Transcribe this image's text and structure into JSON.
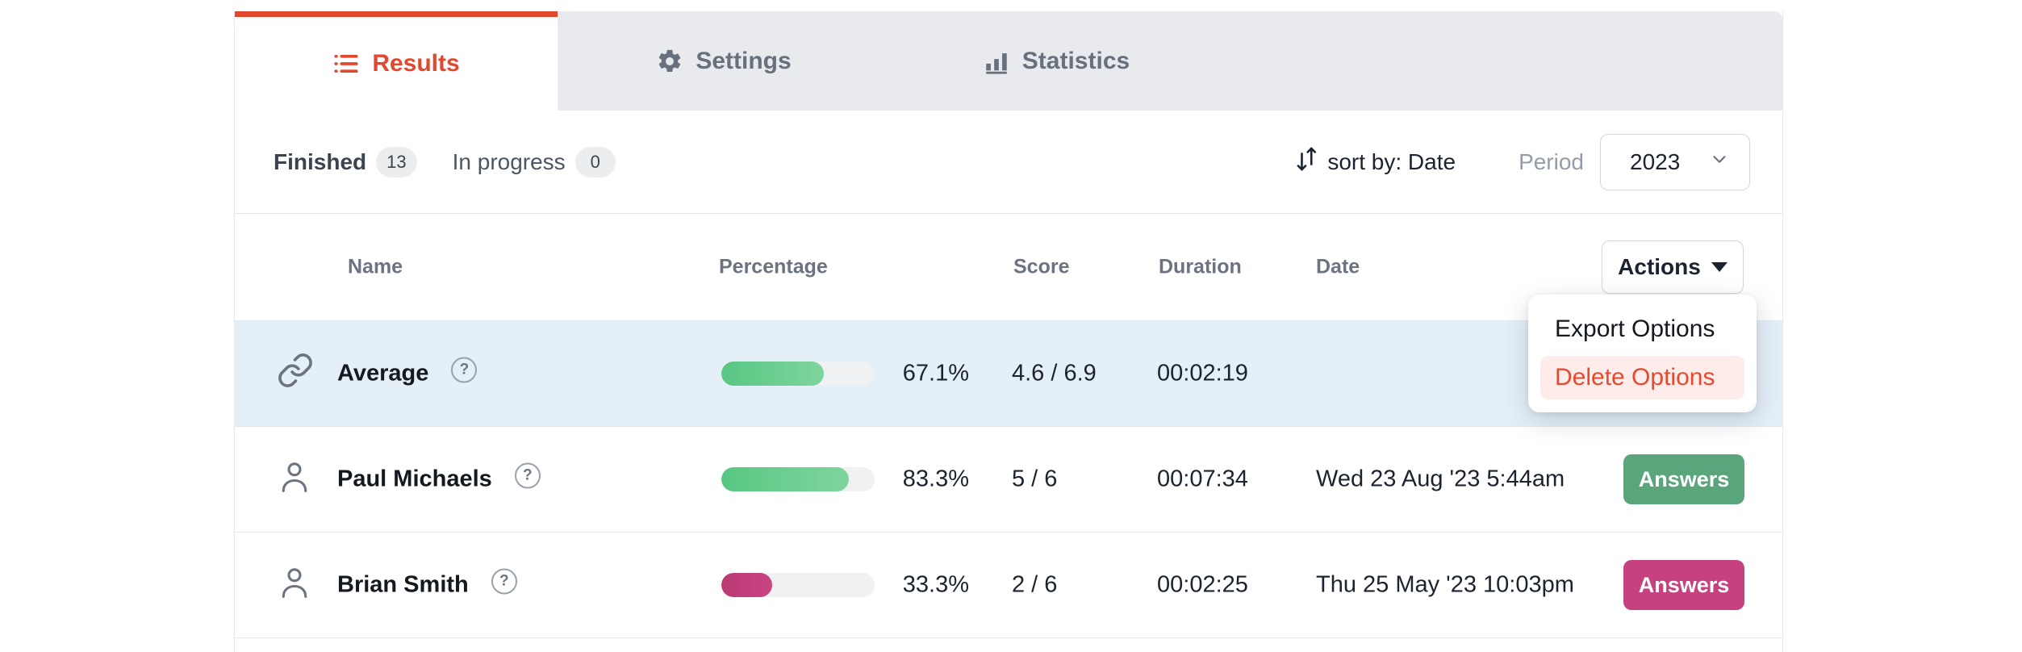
{
  "tabs": {
    "results": {
      "label": "Results",
      "icon": "list-icon"
    },
    "settings": {
      "label": "Settings",
      "icon": "gear-icon"
    },
    "statistics": {
      "label": "Statistics",
      "icon": "bar-chart-icon"
    }
  },
  "filters": {
    "finished": {
      "label": "Finished",
      "count": "13"
    },
    "in_progress": {
      "label": "In progress",
      "count": "0"
    }
  },
  "toolbar": {
    "sort_label": "sort by: Date",
    "period_label": "Period",
    "period_value": "2023"
  },
  "table": {
    "headers": {
      "name": "Name",
      "percentage": "Percentage",
      "score": "Score",
      "duration": "Duration",
      "date": "Date"
    },
    "actions_label": "Actions",
    "rows": [
      {
        "name": "Average",
        "icon": "link-icon",
        "percentage": "67.1%",
        "percent_value": 67.1,
        "score": "4.6 / 6.9",
        "duration": "00:02:19",
        "date": ""
      },
      {
        "name": "Paul Michaels",
        "icon": "person-icon",
        "percentage": "83.3%",
        "percent_value": 83.3,
        "score": "5 / 6",
        "duration": "00:07:34",
        "date": "Wed 23 Aug '23 5:44am",
        "action_label": "Answers"
      },
      {
        "name": "Brian Smith",
        "icon": "person-icon",
        "percentage": "33.3%",
        "percent_value": 33.3,
        "score": "2 / 6",
        "duration": "00:02:25",
        "date": "Thu 25 May '23 10:03pm",
        "action_label": "Answers"
      }
    ]
  },
  "actions_menu": {
    "items": [
      {
        "label": "Export Options"
      },
      {
        "label": "Delete Options"
      }
    ]
  },
  "colors": {
    "accent_red": "#e2482d",
    "tabbar_bg": "#e8eaed",
    "progress_green": "#63cd8f",
    "progress_pink": "#c13d7b",
    "answers_green": "#5ba57c",
    "answers_pink": "#c5417f",
    "highlight_row_blue": "#e5eff8",
    "danger_item_bg": "#fdecea",
    "danger_text": "#e64a2e"
  }
}
